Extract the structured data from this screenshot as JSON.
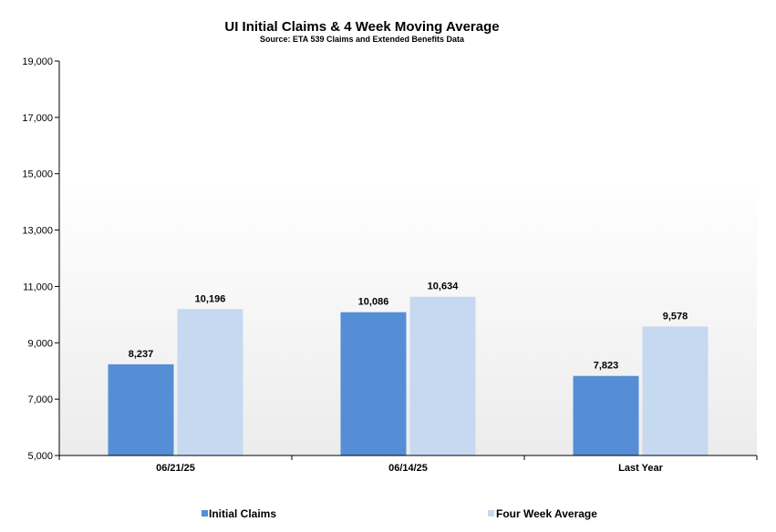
{
  "chart_data": {
    "type": "bar",
    "title": "UI Initial Claims &  4 Week Moving Average",
    "subtitle": "Source: ETA 539 Claims and Extended Benefits Data",
    "categories": [
      "06/21/25",
      "06/14/25",
      "Last Year"
    ],
    "series": [
      {
        "name": "Initial Claims",
        "values": [
          8237,
          10086,
          7823
        ],
        "color": "#558ed5"
      },
      {
        "name": "Four Week Average",
        "values": [
          10196,
          10634,
          9578
        ],
        "color": "#c6d9f1"
      }
    ],
    "data_labels": [
      [
        "8,237",
        "10,086",
        "7,823"
      ],
      [
        "10,196",
        "10,634",
        "9,578"
      ]
    ],
    "ylim": [
      5000,
      19000
    ],
    "yticks": [
      5000,
      7000,
      9000,
      11000,
      13000,
      15000,
      17000,
      19000
    ],
    "ytick_labels": [
      "5,000",
      "7,000",
      "9,000",
      "11,000",
      "13,000",
      "15,000",
      "17,000",
      "19,000"
    ],
    "grid": false,
    "legend_position": "bottom"
  }
}
